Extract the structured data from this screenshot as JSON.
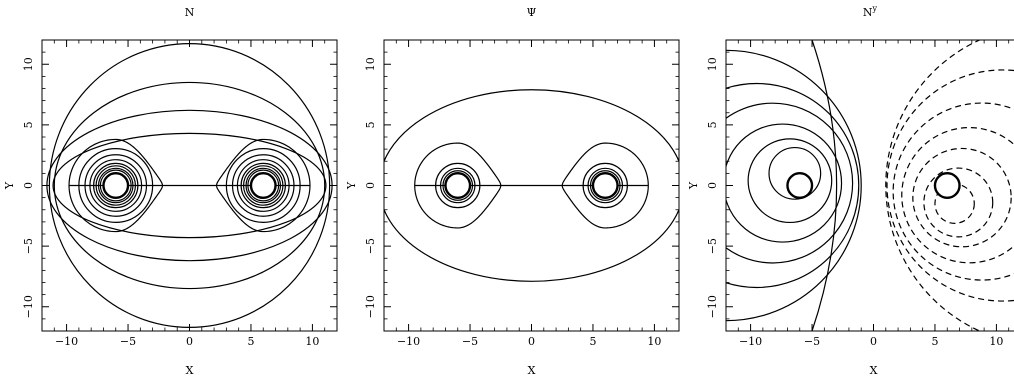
{
  "chart_data": [
    {
      "type": "contour",
      "title": "N",
      "xlabel": "X",
      "ylabel": "Y",
      "xlim": [
        -12,
        12
      ],
      "ylim": [
        -12,
        12
      ],
      "xticks": [
        -10,
        -5,
        0,
        5,
        10
      ],
      "yticks": [
        -10,
        -5,
        0,
        5,
        10
      ],
      "grid": false,
      "sources": [
        {
          "x": -6,
          "y": 0,
          "excised_radius": 1
        },
        {
          "x": 6,
          "y": 0,
          "excised_radius": 1
        }
      ],
      "contours": [
        {
          "a": 11.4,
          "b": 11.7
        },
        {
          "a": 11.0,
          "b": 8.5
        },
        {
          "a": 11.6,
          "b": 6.2
        },
        {
          "a": 11.1,
          "b": 4.3
        },
        {
          "type": "lobes",
          "a": 3.8,
          "neck": 1.2
        },
        {
          "type": "lobes",
          "a": 3.0
        },
        {
          "type": "lobes",
          "a": 2.5
        },
        {
          "type": "lobes",
          "a": 2.1
        },
        {
          "type": "lobes",
          "a": 1.8
        },
        {
          "type": "lobes",
          "a": 1.6
        },
        {
          "type": "lobes",
          "a": 1.4
        },
        {
          "type": "lobes",
          "a": 1.25
        }
      ]
    },
    {
      "type": "contour",
      "title": "Ψ",
      "xlabel": "X",
      "ylabel": "Y",
      "xlim": [
        -12,
        12
      ],
      "ylim": [
        -12,
        12
      ],
      "xticks": [
        -10,
        -5,
        0,
        5,
        10
      ],
      "yticks": [
        -10,
        -5,
        0,
        5,
        10
      ],
      "grid": false,
      "sources": [
        {
          "x": -6,
          "y": 0,
          "excised_radius": 1
        },
        {
          "x": 6,
          "y": 0,
          "excised_radius": 1
        }
      ],
      "contours": [
        {
          "a": 12.4,
          "b": 7.9
        },
        {
          "type": "lobes",
          "a": 3.5,
          "neck": 1.2
        },
        {
          "type": "lobes",
          "a": 1.8
        },
        {
          "type": "lobes",
          "a": 1.4
        },
        {
          "type": "lobes",
          "a": 1.2
        }
      ]
    },
    {
      "type": "contour",
      "title": "N",
      "title_superscript": "y",
      "xlabel": "X",
      "ylabel": "Y",
      "xlim": [
        -12,
        12
      ],
      "ylim": [
        -12,
        12
      ],
      "xticks": [
        -10,
        -5,
        0,
        5,
        10
      ],
      "yticks": [
        -10,
        -5,
        0,
        5,
        10
      ],
      "grid": false,
      "sources": [
        {
          "x": -6,
          "y": 0,
          "excised_radius": 1
        },
        {
          "x": 6,
          "y": 0,
          "excised_radius": 1
        }
      ],
      "contours": {
        "positive_solid": [
          {
            "cx": -6.4,
            "cy": 1.0,
            "r": 2.1
          },
          {
            "cx": -6.8,
            "cy": 0.4,
            "r": 3.4
          },
          {
            "cx": -7.4,
            "cy": 0.2,
            "r": 4.8
          },
          {
            "cx": -8.2,
            "cy": 0.2,
            "r": 6.5
          },
          {
            "cx": -9.5,
            "cy": 0.0,
            "r": 8.3
          },
          {
            "cx": -12.0,
            "cy": 0.0,
            "r": 11.0
          }
        ],
        "near_zero_solid": {
          "x": -2.5,
          "y": 0.0
        },
        "negative_dashed": [
          {
            "cx": 6.6,
            "cy": -1.5,
            "r": 1.6
          },
          {
            "cx": 6.9,
            "cy": -1.4,
            "r": 2.8
          },
          {
            "cx": 7.2,
            "cy": -1.0,
            "r": 4.0
          },
          {
            "cx": 7.8,
            "cy": -0.8,
            "r": 5.5
          },
          {
            "cx": 8.8,
            "cy": -0.5,
            "r": 7.2
          },
          {
            "cx": 10.5,
            "cy": 0.0,
            "r": 9.4
          },
          {
            "cx": 14.0,
            "cy": 0.0,
            "r": 13.0
          }
        ]
      }
    }
  ]
}
